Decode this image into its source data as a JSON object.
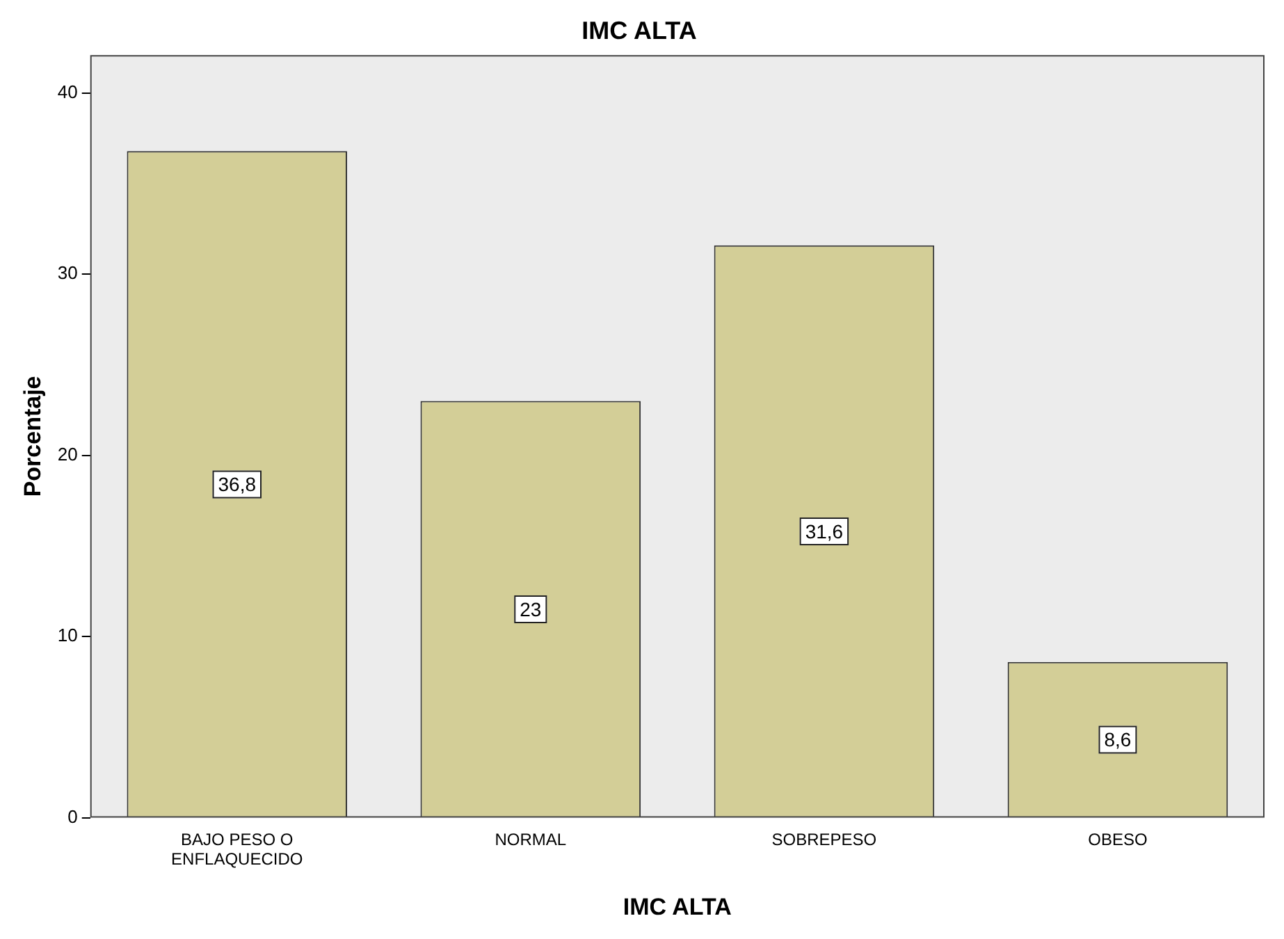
{
  "chart_data": {
    "type": "bar",
    "title": "IMC ALTA",
    "xlabel": "IMC ALTA",
    "ylabel": "Porcentaje",
    "categories": [
      "BAJO PESO O ENFLAQUECIDO",
      "NORMAL",
      "SOBREPESO",
      "OBESO"
    ],
    "values": [
      36.8,
      23,
      31.6,
      8.6
    ],
    "value_labels": [
      "36,8",
      "23",
      "31,6",
      "8,6"
    ],
    "color": "#d3ce97",
    "ylim": [
      0,
      42.1
    ],
    "yticks": [
      0,
      10,
      20,
      30,
      40
    ],
    "grid": false,
    "legend": false
  }
}
